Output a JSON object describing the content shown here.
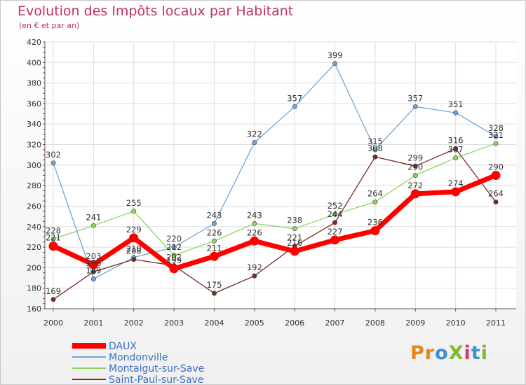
{
  "header": {
    "title": "Evolution des Impôts locaux par Habitant",
    "subtitle": "(en € et par an)"
  },
  "logo": {
    "text": "ProXiti",
    "letters": [
      "P",
      "r",
      "o",
      "X",
      "i",
      "t",
      "i"
    ],
    "colors": [
      "#e8841c",
      "#e8841c",
      "#3b8fd6",
      "#7fba2b",
      "#d63b6b",
      "#3b8fd6",
      "#7fba2b"
    ]
  },
  "chart_data": {
    "type": "line",
    "title": "Evolution des Impôts locaux par Habitant",
    "subtitle": "(en € et par an)",
    "xlabel": "",
    "ylabel": "",
    "categories": [
      "2000",
      "2001",
      "2002",
      "2003",
      "2004",
      "2005",
      "2006",
      "2007",
      "2008",
      "2009",
      "2010",
      "2011"
    ],
    "ylim": [
      160,
      420
    ],
    "yticks": [
      160,
      180,
      200,
      220,
      240,
      260,
      280,
      300,
      320,
      340,
      360,
      380,
      400,
      420
    ],
    "grid": true,
    "legend_position": "bottom-left",
    "series": [
      {
        "name": "DAUX",
        "color": "#ff0000",
        "values": [
          221,
          203,
          229,
          199,
          211,
          226,
          216,
          227,
          236,
          272,
          274,
          290
        ]
      },
      {
        "name": "Mondonville",
        "color": "#6fa5d6",
        "values": [
          302,
          189,
          210,
          220,
          243,
          322,
          357,
          399,
          315,
          357,
          351,
          328
        ]
      },
      {
        "name": "Montaigut-sur-Save",
        "color": "#8cd65c",
        "values": [
          228,
          241,
          255,
          212,
          226,
          243,
          238,
          252,
          264,
          290,
          307,
          321
        ]
      },
      {
        "name": "Saint-Paul-sur-Save",
        "color": "#7a2a2a",
        "values": [
          169,
          196,
          208,
          202,
          175,
          192,
          221,
          244,
          308,
          299,
          316,
          264
        ]
      }
    ]
  }
}
